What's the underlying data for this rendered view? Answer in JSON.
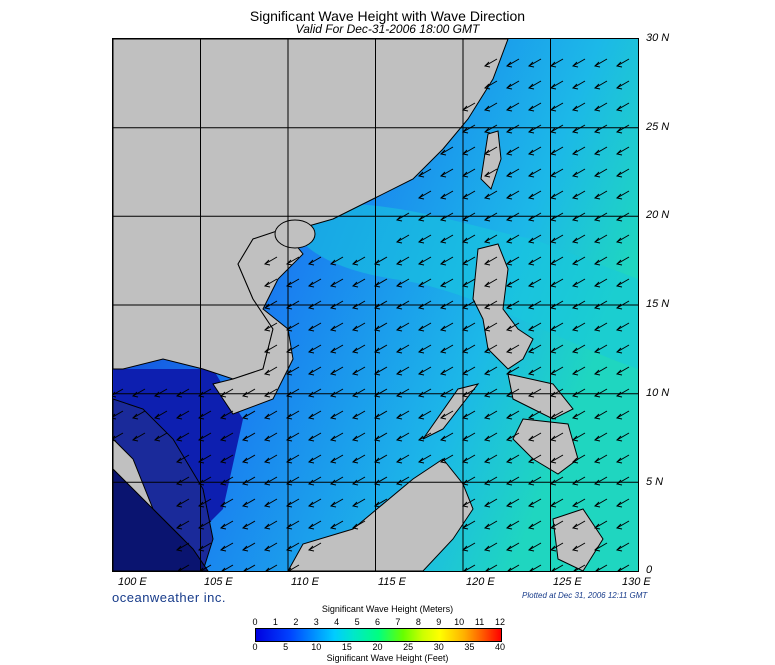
{
  "title": "Significant Wave Height with Wave Direction",
  "subtitle": "Valid For Dec-31-2006 18:00 GMT",
  "latitude_labels": [
    "30 N",
    "25 N",
    "20 N",
    "15 N",
    "10 N",
    "5 N",
    "0"
  ],
  "longitude_labels": [
    "100 E",
    "105 E",
    "110 E",
    "115 E",
    "120 E",
    "125 E",
    "130 E"
  ],
  "brand": "oceanweather inc.",
  "plotted": "Plotted at Dec 31, 2006 12:11 GMT",
  "colorbar": {
    "meters_title": "Significant Wave Height (Meters)",
    "meters_ticks": [
      "0",
      "1",
      "2",
      "3",
      "4",
      "5",
      "6",
      "7",
      "8",
      "9",
      "10",
      "11",
      "12"
    ],
    "feet_ticks": [
      "0",
      "5",
      "10",
      "15",
      "20",
      "25",
      "30",
      "35",
      "40"
    ],
    "feet_title": "Significant Wave Height (Feet)"
  },
  "colors": {
    "land": "#c0c0c0",
    "sea_low": "#0a1aa8",
    "sea_mid": "#1a63e8",
    "sea_high": "#1fd6c8",
    "arrow": "#000000"
  }
}
